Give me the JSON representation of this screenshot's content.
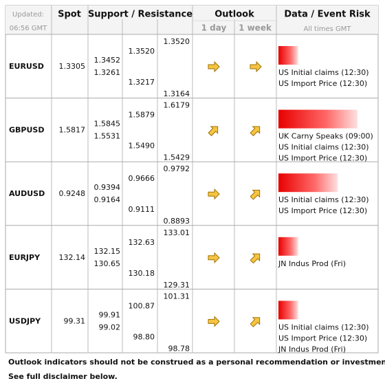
{
  "header": {
    "updated_label": "Updated:",
    "updated_time": "06:56 GMT",
    "spot": "Spot",
    "support_resistance": "Support / Resistance",
    "outlook": "Outlook",
    "day": "1 day",
    "week": "1 week",
    "data_event_risk": "Data / Event Risk",
    "times_note": "All times GMT"
  },
  "rows": [
    {
      "pair": "EURUSD",
      "spot": "1.3305",
      "levels": [
        [
          "1.3452",
          "1.3261"
        ],
        [
          "1.3520",
          "1.3217"
        ],
        [
          "1.3520",
          "1.3164"
        ]
      ],
      "outlook": [
        "right",
        "right"
      ],
      "risk": 25,
      "events": [
        "US Initial claims (12:30)",
        "US Import Price (12:30)"
      ]
    },
    {
      "pair": "GBPUSD",
      "spot": "1.5817",
      "levels": [
        [
          "1.5845",
          "1.5531"
        ],
        [
          "1.5879",
          "1.5490"
        ],
        [
          "1.6179",
          "1.5429"
        ]
      ],
      "outlook": [
        "up-right",
        "up-right"
      ],
      "risk": 100,
      "events": [
        "UK Carny Speaks (09:00)",
        "US Initial claims (12:30)",
        "US Import Price (12:30)"
      ]
    },
    {
      "pair": "AUDUSD",
      "spot": "0.9248",
      "levels": [
        [
          "0.9394",
          "0.9164"
        ],
        [
          "0.9666",
          "0.9111"
        ],
        [
          "0.9792",
          "0.8893"
        ]
      ],
      "outlook": [
        "right",
        "up-right"
      ],
      "risk": 75,
      "events": [
        "US Initial claims (12:30)",
        "US Import Price (12:30)"
      ]
    },
    {
      "pair": "EURJPY",
      "spot": "132.14",
      "levels": [
        [
          "132.15",
          "130.65"
        ],
        [
          "132.63",
          "130.18"
        ],
        [
          "133.01",
          "129.31"
        ]
      ],
      "outlook": [
        "right",
        "up-right"
      ],
      "risk": 25,
      "events": [
        "JN Indus Prod (Fri)"
      ]
    },
    {
      "pair": "USDJPY",
      "spot": "99.31",
      "levels": [
        [
          "99.91",
          "99.02"
        ],
        [
          "100.87",
          "98.80"
        ],
        [
          "101.31",
          "98.78"
        ]
      ],
      "outlook": [
        "right",
        "up-right"
      ],
      "risk": 25,
      "events": [
        "US Initial claims (12:30)",
        "US Import Price (12:30)",
        "JN Indus Prod (Fri)"
      ]
    }
  ],
  "footer": [
    "Outlook indicators should not be construed as a personal recommendation or investment advice.",
    "See full disclaimer below."
  ]
}
